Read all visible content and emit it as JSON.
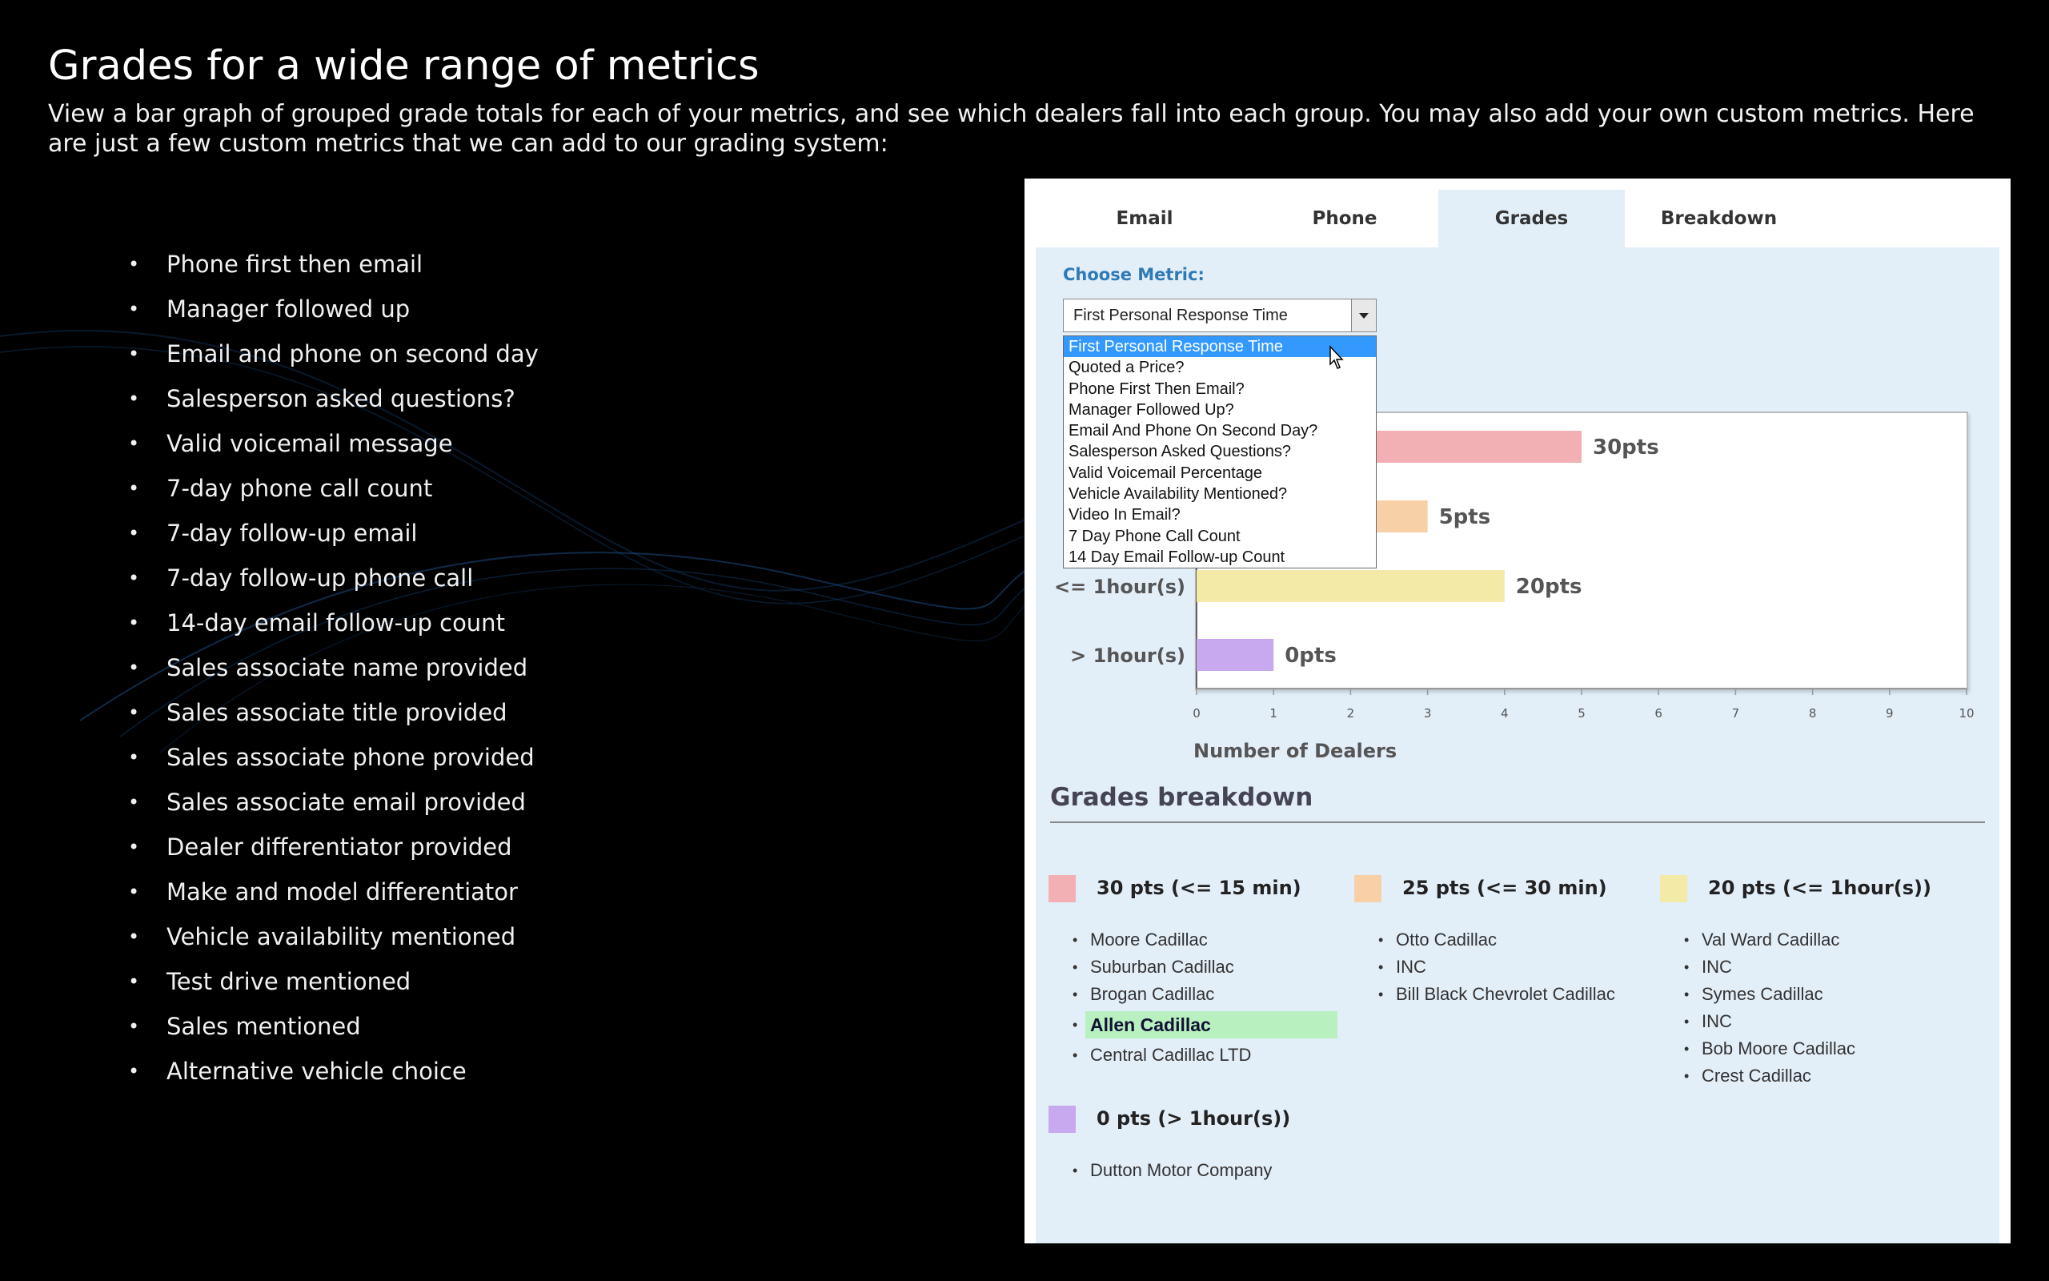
{
  "slide": {
    "title": "Grades for a wide range of metrics",
    "description": "View a bar graph of grouped grade totals for each of your metrics, and see which dealers fall into each group. You may also add your own custom metrics. Here are just a few custom metrics that we can add to our grading system:",
    "bullets": [
      "Phone first then email",
      "Manager followed up",
      "Email and phone on second day",
      "Salesperson asked questions?",
      "Valid voicemail message",
      "7-day phone call count",
      "7-day follow-up email",
      "7-day follow-up phone call",
      "14-day email follow-up count",
      "Sales associate name provided",
      "Sales associate title provided",
      "Sales associate phone provided",
      "Sales associate email provided",
      "Dealer differentiator provided",
      "Make and model differentiator",
      "Vehicle availability mentioned",
      "Test drive mentioned",
      "Sales mentioned",
      "Alternative vehicle choice"
    ]
  },
  "widget": {
    "tabs": [
      {
        "label": "Email",
        "active": false
      },
      {
        "label": "Phone",
        "active": false
      },
      {
        "label": "Grades",
        "active": true
      },
      {
        "label": "Breakdown",
        "active": false
      }
    ],
    "choose_metric_label": "Choose Metric:",
    "select_value": "First Personal Response Time",
    "dropdown_options": [
      "First Personal Response Time",
      "Quoted a Price?",
      "Phone First Then Email?",
      "Manager Followed Up?",
      "Email And Phone On Second Day?",
      "Salesperson Asked Questions?",
      "Valid Voicemail Percentage",
      "Vehicle Availability Mentioned?",
      "Video In Email?",
      "7 Day Phone Call Count",
      "14 Day Email Follow-up Count"
    ],
    "selected_option_index": 0
  },
  "chart_data": {
    "type": "bar",
    "orientation": "horizontal",
    "categories": [
      "<= 15 min",
      "<= 30 min",
      "<= 1hour(s)",
      "> 1hour(s)"
    ],
    "visible_category_labels": [
      "",
      "",
      "<= 1hour(s)",
      "> 1hour(s)"
    ],
    "values": [
      5,
      3,
      4,
      1
    ],
    "bar_labels": [
      "30pts",
      "25pts",
      "20pts",
      "0pts"
    ],
    "visible_bar_labels": [
      "30pts",
      "5pts",
      "20pts",
      "0pts"
    ],
    "colors": [
      "#f2b0b4",
      "#f8d0a8",
      "#f2eaa6",
      "#c8a8ee"
    ],
    "xlabel": "Number of Dealers",
    "xlim": [
      0,
      10
    ],
    "xticks": [
      "0",
      "1",
      "2",
      "3",
      "4",
      "5",
      "6",
      "7",
      "8",
      "9",
      "10"
    ],
    "grid": false
  },
  "breakdown": {
    "title": "Grades breakdown",
    "groups": [
      {
        "label": "30 pts (<= 15 min)",
        "color": "#f2b0b4",
        "dealers": [
          "Moore Cadillac",
          "Suburban Cadillac",
          "Brogan Cadillac",
          "Allen Cadillac",
          "Central Cadillac LTD"
        ],
        "highlight_index": 3
      },
      {
        "label": "25 pts (<= 30 min)",
        "color": "#f8d0a8",
        "dealers": [
          "Otto Cadillac",
          "INC",
          "Bill Black Chevrolet Cadillac"
        ],
        "highlight_index": -1
      },
      {
        "label": "20 pts (<= 1hour(s))",
        "color": "#f2eaa6",
        "dealers": [
          "Val Ward Cadillac",
          "INC",
          "Symes Cadillac",
          "INC",
          "Bob Moore Cadillac",
          "Crest Cadillac"
        ],
        "highlight_index": -1
      },
      {
        "label": "0 pts (> 1hour(s))",
        "color": "#c8a8ee",
        "dealers": [
          "Dutton Motor Company"
        ],
        "highlight_index": -1
      }
    ]
  }
}
